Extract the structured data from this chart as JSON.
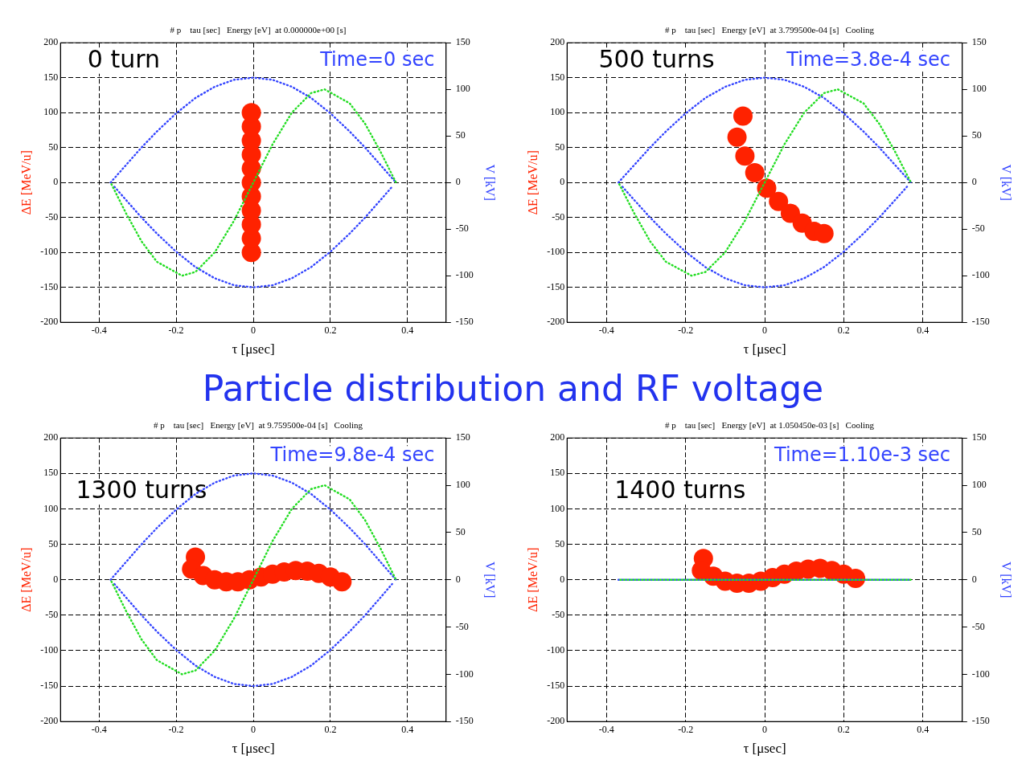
{
  "chart_data": [
    {
      "type": "scatter",
      "title": "# p    tau [sec]   Energy [eV]  at 0.000000e+00 [s]",
      "xlabel": "τ [μsec]",
      "ylabel": "ΔE [MeV/u]",
      "y2label": "V [kV]",
      "annotations": [
        "0 turn",
        "Time=0 sec"
      ],
      "xlim": [
        -0.5,
        0.5
      ],
      "xticks": [
        -0.4,
        -0.2,
        0,
        0.2,
        0.4
      ],
      "ylim": [
        -200,
        200
      ],
      "yticks": [
        -200,
        -150,
        -100,
        -50,
        0,
        50,
        100,
        150,
        200
      ],
      "y2lim": [
        -150,
        150
      ],
      "y2ticks": [
        -150,
        -100,
        -50,
        0,
        50,
        100,
        150
      ],
      "grid": true,
      "legend": false,
      "series": [
        {
          "type": "scatter",
          "color": "#ff2200",
          "marker": "circle",
          "x": [
            -0.005,
            -0.005,
            -0.005,
            -0.005,
            -0.005,
            -0.005,
            -0.005,
            -0.005,
            -0.005,
            -0.005,
            -0.005
          ],
          "values": [
            -100,
            -80,
            -60,
            -40,
            -20,
            0,
            20,
            40,
            60,
            80,
            100
          ]
        },
        {
          "type": "line",
          "color": "#3344ff",
          "marker": "none",
          "line_style": "dotted",
          "x": [
            -0.37,
            -0.33,
            -0.29,
            -0.25,
            -0.2,
            -0.15,
            -0.1,
            -0.05,
            0,
            0.05,
            0.1,
            0.15,
            0.2,
            0.25,
            0.29,
            0.33,
            0.37
          ],
          "values": [
            0,
            25,
            50,
            73,
            99,
            121,
            137,
            147,
            150,
            147,
            137,
            121,
            99,
            73,
            50,
            25,
            0
          ]
        },
        {
          "type": "line",
          "color": "#3344ff",
          "marker": "none",
          "line_style": "dotted",
          "x": [
            -0.36,
            -0.33,
            -0.29,
            -0.25,
            -0.2,
            -0.15,
            -0.1,
            -0.05,
            0,
            0.05,
            0.1,
            0.15,
            0.2,
            0.25,
            0.29,
            0.33,
            0.36
          ],
          "values": [
            -6,
            -25,
            -50,
            -73,
            -99,
            -121,
            -137,
            -147,
            -150,
            -147,
            -137,
            -121,
            -99,
            -73,
            -50,
            -25,
            -6
          ]
        },
        {
          "type": "line",
          "axis": "y2",
          "color": "#22dd22",
          "marker": "none",
          "line_style": "dotted",
          "x": [
            -0.37,
            -0.33,
            -0.29,
            -0.25,
            -0.185,
            -0.15,
            -0.1,
            -0.05,
            0,
            0.05,
            0.1,
            0.15,
            0.185,
            0.25,
            0.29,
            0.33,
            0.37
          ],
          "values": [
            0,
            -33,
            -63,
            -85,
            -100,
            -96,
            -75,
            -41,
            0,
            41,
            75,
            96,
            100,
            85,
            63,
            33,
            0
          ]
        }
      ]
    },
    {
      "type": "scatter",
      "title": "# p    tau [sec]   Energy [eV]  at 3.799500e-04 [s]   Cooling",
      "xlabel": "τ [μsec]",
      "ylabel": "ΔE [MeV/u]",
      "y2label": "V [kV]",
      "annotations": [
        "500 turns",
        "Time=3.8e-4 sec"
      ],
      "xlim": [
        -0.5,
        0.5
      ],
      "xticks": [
        -0.4,
        -0.2,
        0,
        0.2,
        0.4
      ],
      "ylim": [
        -200,
        200
      ],
      "yticks": [
        -200,
        -150,
        -100,
        -50,
        0,
        50,
        100,
        150,
        200
      ],
      "y2lim": [
        -150,
        150
      ],
      "y2ticks": [
        -150,
        -100,
        -50,
        0,
        50,
        100,
        150
      ],
      "grid": true,
      "legend": false,
      "series": [
        {
          "type": "scatter",
          "color": "#ff2200",
          "marker": "circle",
          "x": [
            -0.055,
            -0.07,
            -0.05,
            -0.025,
            0.005,
            0.035,
            0.065,
            0.095,
            0.125,
            0.15
          ],
          "values": [
            95,
            65,
            38,
            14,
            -8,
            -27,
            -44,
            -58,
            -70,
            -73
          ]
        },
        {
          "type": "line",
          "color": "#3344ff",
          "marker": "none",
          "line_style": "dotted",
          "x": [
            -0.37,
            -0.33,
            -0.29,
            -0.25,
            -0.2,
            -0.15,
            -0.1,
            -0.05,
            0,
            0.05,
            0.1,
            0.15,
            0.2,
            0.25,
            0.29,
            0.33,
            0.37
          ],
          "values": [
            0,
            25,
            50,
            73,
            99,
            121,
            137,
            147,
            150,
            147,
            137,
            121,
            99,
            73,
            50,
            25,
            0
          ]
        },
        {
          "type": "line",
          "color": "#3344ff",
          "marker": "none",
          "line_style": "dotted",
          "x": [
            -0.36,
            -0.33,
            -0.29,
            -0.25,
            -0.2,
            -0.15,
            -0.1,
            -0.05,
            0,
            0.05,
            0.1,
            0.15,
            0.2,
            0.25,
            0.29,
            0.33,
            0.36
          ],
          "values": [
            -6,
            -25,
            -50,
            -73,
            -99,
            -121,
            -137,
            -147,
            -150,
            -147,
            -137,
            -121,
            -99,
            -73,
            -50,
            -25,
            -6
          ]
        },
        {
          "type": "line",
          "axis": "y2",
          "color": "#22dd22",
          "marker": "none",
          "line_style": "dotted",
          "x": [
            -0.37,
            -0.33,
            -0.29,
            -0.25,
            -0.185,
            -0.15,
            -0.1,
            -0.05,
            0,
            0.05,
            0.1,
            0.15,
            0.185,
            0.25,
            0.29,
            0.33,
            0.37
          ],
          "values": [
            0,
            -33,
            -63,
            -85,
            -100,
            -96,
            -75,
            -41,
            0,
            41,
            75,
            96,
            100,
            85,
            63,
            33,
            0
          ]
        }
      ]
    },
    {
      "type": "other",
      "title": "Particle distribution and RF voltage"
    },
    {
      "type": "scatter",
      "title": "# p    tau [sec]   Energy [eV]  at 9.759500e-04 [s]   Cooling",
      "xlabel": "τ [μsec]",
      "ylabel": "ΔE [MeV/u]",
      "y2label": "V [kV]",
      "annotations": [
        "1300 turns",
        "Time=9.8e-4 sec"
      ],
      "xlim": [
        -0.5,
        0.5
      ],
      "xticks": [
        -0.4,
        -0.2,
        0,
        0.2,
        0.4
      ],
      "ylim": [
        -200,
        200
      ],
      "yticks": [
        -200,
        -150,
        -100,
        -50,
        0,
        50,
        100,
        150,
        200
      ],
      "y2lim": [
        -150,
        150
      ],
      "y2ticks": [
        -150,
        -100,
        -50,
        0,
        50,
        100,
        150
      ],
      "grid": true,
      "legend": false,
      "series": [
        {
          "type": "scatter",
          "color": "#ff2200",
          "marker": "circle",
          "x": [
            -0.15,
            -0.16,
            -0.13,
            -0.1,
            -0.07,
            -0.04,
            -0.01,
            0.02,
            0.05,
            0.08,
            0.11,
            0.14,
            0.17,
            0.2,
            0.23
          ],
          "values": [
            32,
            15,
            6,
            0,
            -3,
            -3,
            0,
            4,
            8,
            11,
            13,
            12,
            9,
            4,
            -3
          ]
        },
        {
          "type": "line",
          "color": "#3344ff",
          "marker": "none",
          "line_style": "dotted",
          "x": [
            -0.37,
            -0.33,
            -0.29,
            -0.25,
            -0.2,
            -0.15,
            -0.1,
            -0.05,
            0,
            0.05,
            0.1,
            0.15,
            0.2,
            0.25,
            0.29,
            0.33,
            0.37
          ],
          "values": [
            0,
            25,
            50,
            73,
            99,
            121,
            137,
            147,
            150,
            147,
            137,
            121,
            99,
            73,
            50,
            25,
            0
          ]
        },
        {
          "type": "line",
          "color": "#3344ff",
          "marker": "none",
          "line_style": "dotted",
          "x": [
            -0.36,
            -0.33,
            -0.29,
            -0.25,
            -0.2,
            -0.15,
            -0.1,
            -0.05,
            0,
            0.05,
            0.1,
            0.15,
            0.2,
            0.25,
            0.29,
            0.33,
            0.36
          ],
          "values": [
            -6,
            -25,
            -50,
            -73,
            -99,
            -121,
            -137,
            -147,
            -150,
            -147,
            -137,
            -121,
            -99,
            -73,
            -50,
            -25,
            -6
          ]
        },
        {
          "type": "line",
          "axis": "y2",
          "color": "#22dd22",
          "marker": "none",
          "line_style": "dotted",
          "x": [
            -0.37,
            -0.33,
            -0.29,
            -0.25,
            -0.185,
            -0.15,
            -0.1,
            -0.05,
            0,
            0.05,
            0.1,
            0.15,
            0.185,
            0.25,
            0.29,
            0.33,
            0.37
          ],
          "values": [
            0,
            -33,
            -63,
            -85,
            -100,
            -96,
            -75,
            -41,
            0,
            41,
            75,
            96,
            100,
            85,
            63,
            33,
            0
          ]
        }
      ]
    },
    {
      "type": "scatter",
      "title": "# p    tau [sec]   Energy [eV]  at 1.050450e-03 [s]   Cooling",
      "xlabel": "τ [μsec]",
      "ylabel": "ΔE [MeV/u]",
      "y2label": "V [kV]",
      "annotations": [
        "1400 turns",
        "Time=1.10e-3 sec"
      ],
      "xlim": [
        -0.5,
        0.5
      ],
      "xticks": [
        -0.4,
        -0.2,
        0,
        0.2,
        0.4
      ],
      "ylim": [
        -200,
        200
      ],
      "yticks": [
        -200,
        -150,
        -100,
        -50,
        0,
        50,
        100,
        150,
        200
      ],
      "y2lim": [
        -150,
        150
      ],
      "y2ticks": [
        -150,
        -100,
        -50,
        0,
        50,
        100,
        150
      ],
      "grid": true,
      "legend": false,
      "series": [
        {
          "type": "scatter",
          "color": "#ff2200",
          "marker": "circle",
          "x": [
            -0.155,
            -0.16,
            -0.13,
            -0.1,
            -0.07,
            -0.04,
            -0.01,
            0.02,
            0.05,
            0.08,
            0.11,
            0.14,
            0.17,
            0.2,
            0.23
          ],
          "values": [
            30,
            13,
            5,
            -2,
            -5,
            -5,
            -2,
            3,
            8,
            12,
            15,
            16,
            13,
            8,
            2
          ]
        },
        {
          "type": "line",
          "color": "#3344ff",
          "marker": "none",
          "line_style": "dotted",
          "x": [
            -0.37,
            0.37
          ],
          "values": [
            0,
            0
          ]
        },
        {
          "type": "line",
          "axis": "y2",
          "color": "#22dd22",
          "marker": "none",
          "line_style": "dotted",
          "x": [
            -0.37,
            0.37
          ],
          "values": [
            0,
            0
          ]
        }
      ]
    }
  ]
}
